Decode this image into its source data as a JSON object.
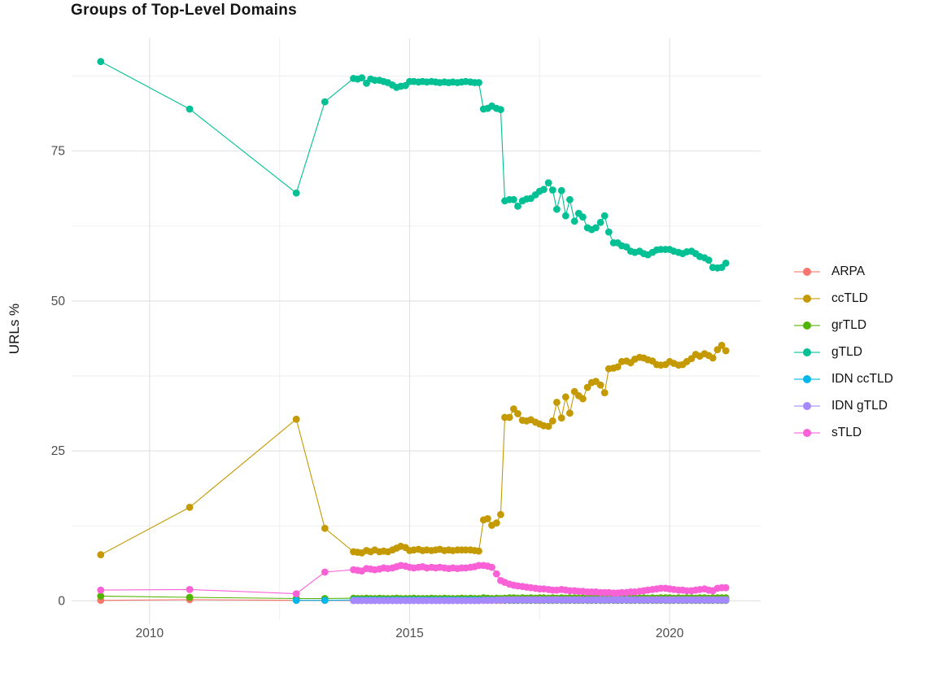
{
  "page": {
    "title": "Groups of Top-Level Domains"
  },
  "chart_data": {
    "type": "scatter",
    "title": "Groups of Top-Level Domains",
    "xlabel": "",
    "ylabel": "URLs %",
    "x_ticks": [
      2010,
      2015,
      2020
    ],
    "x_minor_ticks": [
      2012.5,
      2017.5
    ],
    "y_ticks": [
      0,
      25,
      50,
      75
    ],
    "y_minor_ticks": [
      12.5,
      37.5,
      62.5,
      87.5
    ],
    "xlim": [
      2008.5,
      2021.75
    ],
    "ylim": [
      -3.2,
      93.8
    ],
    "grid": true,
    "legend_position": "right",
    "x_monthly": [
      2013.92,
      2014.0,
      2014.08,
      2014.17,
      2014.25,
      2014.33,
      2014.42,
      2014.5,
      2014.58,
      2014.67,
      2014.75,
      2014.83,
      2014.92,
      2015.0,
      2015.08,
      2015.17,
      2015.25,
      2015.33,
      2015.42,
      2015.5,
      2015.58,
      2015.67,
      2015.75,
      2015.83,
      2015.92,
      2016.0,
      2016.08,
      2016.17,
      2016.25,
      2016.33,
      2016.42,
      2016.5,
      2016.58,
      2016.67,
      2016.75,
      2016.83,
      2016.92,
      2017.0,
      2017.08,
      2017.17,
      2017.25,
      2017.33,
      2017.42,
      2017.5,
      2017.58,
      2017.67,
      2017.75,
      2017.83,
      2017.92,
      2018.0,
      2018.08,
      2018.17,
      2018.25,
      2018.33,
      2018.42,
      2018.5,
      2018.58,
      2018.67,
      2018.75,
      2018.83,
      2018.92,
      2019.0,
      2019.08,
      2019.17,
      2019.25,
      2019.33,
      2019.42,
      2019.5,
      2019.58,
      2019.67,
      2019.75,
      2019.83,
      2019.92,
      2020.0,
      2020.08,
      2020.17,
      2020.25,
      2020.33,
      2020.42,
      2020.5,
      2020.58,
      2020.67,
      2020.75,
      2020.83,
      2020.92,
      2021.0,
      2021.08
    ],
    "series": [
      {
        "name": "ARPA",
        "color": "#F8766D",
        "pre": [
          [
            2009.06,
            0.1
          ],
          [
            2010.77,
            0.2
          ],
          [
            2012.82,
            0.1
          ],
          [
            2013.37,
            0.1
          ]
        ],
        "monthly": [
          0.08,
          0.08,
          0.08,
          0.08,
          0.08,
          0.08,
          0.08,
          0.08,
          0.08,
          0.08,
          0.08,
          0.08,
          0.08,
          0.08,
          0.08,
          0.08,
          0.08,
          0.08,
          0.08,
          0.08,
          0.08,
          0.08,
          0.08,
          0.08,
          0.08,
          0.08,
          0.08,
          0.08,
          0.08,
          0.08,
          0.08,
          0.08,
          0.08,
          0.08,
          0.08,
          0.08,
          0.08,
          0.08,
          0.08,
          0.08,
          0.08,
          0.08,
          0.08,
          0.08,
          0.08,
          0.08,
          0.08,
          0.08,
          0.08,
          0.08,
          0.08,
          0.08,
          0.08,
          0.08,
          0.08,
          0.08,
          0.08,
          0.08,
          0.08,
          0.08,
          0.08,
          0.08,
          0.08,
          0.08,
          0.08,
          0.08,
          0.08,
          0.08,
          0.08,
          0.08,
          0.08,
          0.08,
          0.08,
          0.08,
          0.08,
          0.08,
          0.08,
          0.08,
          0.08,
          0.08,
          0.08,
          0.08,
          0.08,
          0.08,
          0.08,
          0.08,
          0.08
        ]
      },
      {
        "name": "ccTLD",
        "color": "#C49A00",
        "pre": [
          [
            2009.06,
            7.7
          ],
          [
            2010.77,
            15.6
          ],
          [
            2012.82,
            30.3
          ],
          [
            2013.37,
            12.1
          ]
        ],
        "monthly": [
          8.2,
          8.1,
          8.0,
          8.4,
          8.2,
          8.5,
          8.2,
          8.3,
          8.2,
          8.5,
          8.8,
          9.1,
          8.9,
          8.4,
          8.5,
          8.6,
          8.4,
          8.5,
          8.4,
          8.5,
          8.6,
          8.4,
          8.5,
          8.4,
          8.5,
          8.5,
          8.5,
          8.5,
          8.4,
          8.3,
          13.5,
          13.7,
          12.6,
          13.0,
          14.4,
          30.6,
          30.6,
          32.0,
          31.2,
          30.1,
          30.0,
          30.2,
          29.8,
          29.5,
          29.2,
          29.1,
          30.0,
          33.1,
          30.5,
          34.0,
          31.3,
          34.9,
          34.2,
          33.7,
          35.6,
          36.4,
          36.6,
          36.0,
          34.7,
          38.7,
          38.8,
          39.0,
          39.9,
          40.0,
          39.7,
          40.3,
          40.6,
          40.5,
          40.2,
          40.0,
          39.4,
          39.3,
          39.4,
          39.9,
          39.6,
          39.3,
          39.4,
          39.9,
          40.4,
          41.1,
          40.8,
          41.2,
          40.9,
          40.5,
          41.9,
          42.6,
          41.7
        ]
      },
      {
        "name": "grTLD",
        "color": "#53B400",
        "pre": [
          [
            2009.06,
            0.8
          ],
          [
            2010.77,
            0.6
          ],
          [
            2012.82,
            0.4
          ],
          [
            2013.37,
            0.4
          ]
        ],
        "monthly": [
          0.45,
          0.4,
          0.4,
          0.45,
          0.4,
          0.4,
          0.45,
          0.4,
          0.4,
          0.4,
          0.45,
          0.4,
          0.4,
          0.4,
          0.45,
          0.4,
          0.4,
          0.4,
          0.45,
          0.4,
          0.4,
          0.45,
          0.4,
          0.4,
          0.4,
          0.45,
          0.4,
          0.45,
          0.4,
          0.4,
          0.5,
          0.45,
          0.4,
          0.45,
          0.4,
          0.45,
          0.5,
          0.5,
          0.45,
          0.5,
          0.45,
          0.5,
          0.45,
          0.5,
          0.5,
          0.45,
          0.5,
          0.45,
          0.5,
          0.45,
          0.5,
          0.5,
          0.45,
          0.5,
          0.45,
          0.5,
          0.45,
          0.5,
          0.5,
          0.45,
          0.5,
          0.45,
          0.5,
          0.45,
          0.5,
          0.5,
          0.45,
          0.5,
          0.45,
          0.5,
          0.45,
          0.5,
          0.5,
          0.5,
          0.45,
          0.5,
          0.45,
          0.5,
          0.5,
          0.45,
          0.5,
          0.5,
          0.45,
          0.5,
          0.5,
          0.5,
          0.5
        ]
      },
      {
        "name": "gTLD",
        "color": "#00C094",
        "pre": [
          [
            2009.06,
            89.9
          ],
          [
            2010.77,
            82.0
          ],
          [
            2012.82,
            68.0
          ],
          [
            2013.37,
            83.2
          ]
        ],
        "monthly": [
          87.1,
          87.0,
          87.2,
          86.3,
          87.0,
          86.8,
          86.8,
          86.6,
          86.4,
          86.0,
          85.6,
          85.8,
          85.9,
          86.6,
          86.6,
          86.5,
          86.6,
          86.5,
          86.6,
          86.5,
          86.4,
          86.5,
          86.4,
          86.5,
          86.4,
          86.5,
          86.6,
          86.5,
          86.4,
          86.4,
          82.0,
          82.1,
          82.5,
          82.1,
          81.9,
          66.7,
          66.9,
          66.9,
          65.8,
          66.7,
          67.0,
          67.1,
          67.7,
          68.3,
          68.6,
          69.7,
          68.5,
          65.3,
          68.4,
          64.2,
          66.9,
          63.3,
          64.6,
          64.0,
          62.2,
          61.9,
          62.2,
          63.1,
          64.2,
          61.5,
          59.7,
          59.7,
          59.2,
          59.0,
          58.3,
          58.1,
          58.3,
          57.9,
          57.7,
          58.1,
          58.5,
          58.6,
          58.6,
          58.6,
          58.3,
          58.1,
          57.9,
          58.2,
          58.3,
          57.9,
          57.4,
          57.2,
          56.8,
          55.6,
          55.5,
          55.6,
          56.3
        ]
      },
      {
        "name": "IDN ccTLD",
        "color": "#00B6EB",
        "pre": [
          [
            2012.82,
            0.1
          ],
          [
            2013.37,
            0.1
          ]
        ],
        "monthly": [
          0.15,
          0.15,
          0.15,
          0.15,
          0.15,
          0.15,
          0.15,
          0.15,
          0.15,
          0.15,
          0.15,
          0.15,
          0.15,
          0.15,
          0.15,
          0.15,
          0.15,
          0.15,
          0.15,
          0.15,
          0.15,
          0.15,
          0.15,
          0.15,
          0.15,
          0.15,
          0.15,
          0.15,
          0.15,
          0.15,
          0.15,
          0.15,
          0.15,
          0.15,
          0.15,
          0.15,
          0.15,
          0.15,
          0.15,
          0.15,
          0.15,
          0.15,
          0.15,
          0.15,
          0.15,
          0.15,
          0.15,
          0.15,
          0.15,
          0.15,
          0.15,
          0.15,
          0.15,
          0.15,
          0.15,
          0.15,
          0.15,
          0.15,
          0.15,
          0.15,
          0.15,
          0.15,
          0.15,
          0.15,
          0.15,
          0.15,
          0.15,
          0.15,
          0.15,
          0.15,
          0.15,
          0.15,
          0.15,
          0.15,
          0.15,
          0.15,
          0.15,
          0.15,
          0.15,
          0.15,
          0.15,
          0.15,
          0.15,
          0.15,
          0.15,
          0.15,
          0.15
        ]
      },
      {
        "name": "IDN gTLD",
        "color": "#A58AFF",
        "pre": [],
        "monthly": [
          0.05,
          0.05,
          0.05,
          0.05,
          0.05,
          0.05,
          0.05,
          0.05,
          0.05,
          0.05,
          0.05,
          0.05,
          0.05,
          0.05,
          0.05,
          0.05,
          0.05,
          0.05,
          0.05,
          0.05,
          0.05,
          0.05,
          0.05,
          0.05,
          0.05,
          0.05,
          0.05,
          0.05,
          0.05,
          0.05,
          0.1,
          0.1,
          0.1,
          0.15,
          0.15,
          0.2,
          0.2,
          0.2,
          0.2,
          0.2,
          0.2,
          0.2,
          0.2,
          0.2,
          0.2,
          0.2,
          0.2,
          0.2,
          0.2,
          0.2,
          0.2,
          0.2,
          0.2,
          0.2,
          0.2,
          0.2,
          0.2,
          0.2,
          0.2,
          0.2,
          0.2,
          0.2,
          0.2,
          0.2,
          0.2,
          0.2,
          0.2,
          0.2,
          0.2,
          0.2,
          0.2,
          0.2,
          0.2,
          0.2,
          0.2,
          0.2,
          0.2,
          0.2,
          0.2,
          0.2,
          0.2,
          0.2,
          0.2,
          0.2,
          0.2,
          0.2,
          0.2
        ]
      },
      {
        "name": "sTLD",
        "color": "#FB61D7",
        "pre": [
          [
            2009.06,
            1.8
          ],
          [
            2010.77,
            1.9
          ],
          [
            2012.82,
            1.2
          ],
          [
            2013.37,
            4.8
          ]
        ],
        "monthly": [
          5.2,
          5.1,
          5.0,
          5.4,
          5.3,
          5.2,
          5.3,
          5.5,
          5.4,
          5.5,
          5.7,
          5.9,
          5.8,
          5.6,
          5.5,
          5.6,
          5.7,
          5.5,
          5.6,
          5.5,
          5.6,
          5.5,
          5.4,
          5.5,
          5.4,
          5.5,
          5.5,
          5.6,
          5.7,
          5.9,
          5.9,
          5.8,
          5.6,
          4.5,
          3.4,
          3.1,
          2.8,
          2.6,
          2.5,
          2.4,
          2.3,
          2.2,
          2.1,
          2.0,
          2.0,
          1.9,
          1.8,
          1.8,
          1.9,
          1.8,
          1.7,
          1.7,
          1.6,
          1.6,
          1.5,
          1.5,
          1.5,
          1.4,
          1.4,
          1.4,
          1.3,
          1.3,
          1.4,
          1.4,
          1.5,
          1.5,
          1.6,
          1.7,
          1.8,
          1.9,
          2.0,
          2.1,
          2.1,
          2.0,
          1.9,
          1.8,
          1.8,
          1.7,
          1.7,
          1.8,
          1.9,
          2.0,
          1.8,
          1.7,
          2.1,
          2.2,
          2.2
        ]
      }
    ]
  }
}
